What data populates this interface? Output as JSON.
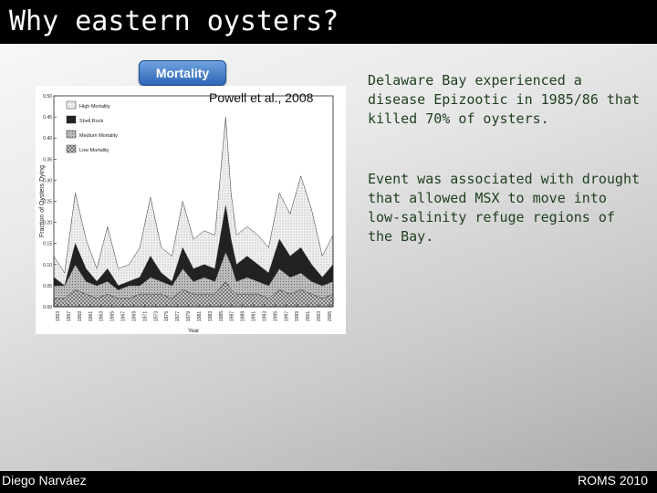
{
  "slide": {
    "title": "Why eastern oysters?",
    "tag": "Mortality",
    "citation": "Powell et al., 2008",
    "paragraphs": [
      "Delaware Bay experienced a disease Epizootic in 1985/86 that killed 70% of oysters.",
      "Event was associated with drought that allowed MSX to move into low-salinity refuge regions of the Bay."
    ],
    "footer_left": "Diego Narváez",
    "footer_right": "ROMS 2010"
  },
  "chart_data": {
    "type": "area",
    "ylabel": "Fraction of Oysters Dying",
    "xlabel": "Year",
    "ylim": [
      0,
      0.5
    ],
    "yticks": [
      "0.50",
      "0.45",
      "0.40",
      "0.35",
      "0.30",
      "0.25",
      "0.20",
      "0.15",
      "0.10",
      "0.05",
      "0.00"
    ],
    "xticks": [
      "1953",
      "1957",
      "1959",
      "1961",
      "1963",
      "1965",
      "1967",
      "1969",
      "1971",
      "1973",
      "1975",
      "1977",
      "1979",
      "1981",
      "1983",
      "1985",
      "1987",
      "1989",
      "1991",
      "1993",
      "1995",
      "1997",
      "1999",
      "2001",
      "2003",
      "2005"
    ],
    "legend": [
      "High Mortality",
      "Shell Rock",
      "Medium Mortality",
      "Low Mortality"
    ],
    "x": [
      1953,
      1955,
      1957,
      1959,
      1961,
      1963,
      1965,
      1967,
      1969,
      1971,
      1973,
      1975,
      1977,
      1979,
      1981,
      1983,
      1985,
      1986,
      1987,
      1989,
      1991,
      1993,
      1995,
      1997,
      1999,
      2001,
      2003,
      2005
    ],
    "series": [
      {
        "name": "High Mortality",
        "values": [
          0.12,
          0.08,
          0.27,
          0.16,
          0.09,
          0.19,
          0.09,
          0.1,
          0.14,
          0.26,
          0.14,
          0.12,
          0.25,
          0.16,
          0.18,
          0.17,
          0.45,
          0.27,
          0.17,
          0.19,
          0.17,
          0.14,
          0.27,
          0.22,
          0.31,
          0.23,
          0.12,
          0.17
        ]
      },
      {
        "name": "Shell Rock",
        "values": [
          0.07,
          0.05,
          0.15,
          0.09,
          0.06,
          0.09,
          0.05,
          0.06,
          0.07,
          0.12,
          0.08,
          0.06,
          0.14,
          0.09,
          0.1,
          0.09,
          0.24,
          0.16,
          0.1,
          0.12,
          0.1,
          0.08,
          0.16,
          0.12,
          0.14,
          0.1,
          0.07,
          0.1
        ]
      },
      {
        "name": "Medium Mortality",
        "values": [
          0.05,
          0.05,
          0.1,
          0.06,
          0.05,
          0.06,
          0.04,
          0.05,
          0.05,
          0.07,
          0.06,
          0.05,
          0.09,
          0.06,
          0.07,
          0.06,
          0.13,
          0.1,
          0.06,
          0.07,
          0.06,
          0.05,
          0.09,
          0.07,
          0.08,
          0.06,
          0.05,
          0.06
        ]
      },
      {
        "name": "Low Mortality",
        "values": [
          0.02,
          0.02,
          0.04,
          0.03,
          0.02,
          0.03,
          0.02,
          0.02,
          0.03,
          0.03,
          0.03,
          0.02,
          0.04,
          0.03,
          0.03,
          0.03,
          0.06,
          0.04,
          0.03,
          0.03,
          0.03,
          0.02,
          0.04,
          0.03,
          0.04,
          0.03,
          0.02,
          0.03
        ]
      }
    ],
    "grid": false,
    "legend_position": "top-left"
  }
}
